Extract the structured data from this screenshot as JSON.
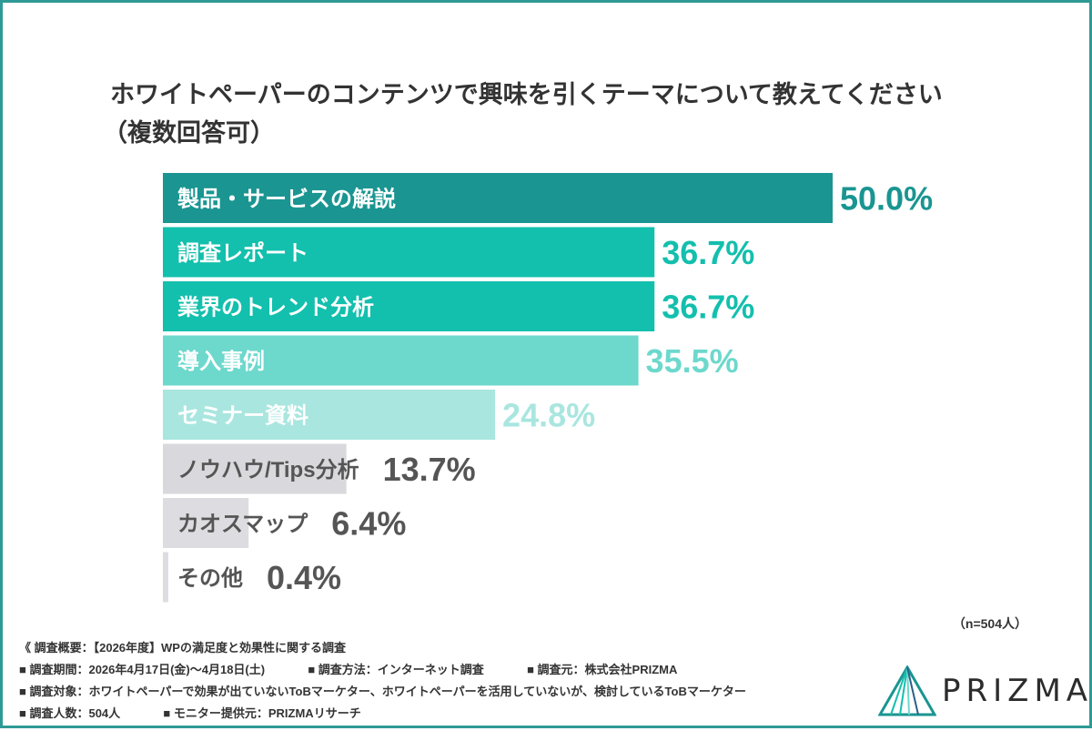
{
  "title_line1": "ホワイトペーパーのコンテンツで興味を引くテーマについて教えてください",
  "title_line2": "（複数回答可）",
  "chart_data": {
    "type": "bar",
    "orientation": "horizontal",
    "categories": [
      "製品・サービスの解説",
      "調査レポート",
      "業界のトレンド分析",
      "導入事例",
      "セミナー資料",
      "ノウハウ/Tips分析",
      "カオスマップ",
      "その他"
    ],
    "values": [
      50.0,
      36.7,
      36.7,
      35.5,
      24.8,
      13.7,
      6.4,
      0.4
    ],
    "value_labels": [
      "50.0%",
      "36.7%",
      "36.7%",
      "35.5%",
      "24.8%",
      "13.7%",
      "6.4%",
      "0.4%"
    ],
    "xlim": [
      0,
      50
    ],
    "bar_colors": [
      "#1a9591",
      "#13bfad",
      "#13bfad",
      "#6dd8cc",
      "#a9e6df",
      "#d9d9dd",
      "#dddde1",
      "#dddde1"
    ],
    "label_colors": [
      "#ffffff",
      "#ffffff",
      "#ffffff",
      "#ffffff",
      "#ffffff",
      "#555555",
      "#555555",
      "#555555"
    ],
    "value_colors": [
      "#1a9591",
      "#13bfad",
      "#13bfad",
      "#6dd8cc",
      "#a9e6df",
      "#555555",
      "#555555",
      "#555555"
    ]
  },
  "n_note": "（n=504人）",
  "survey": {
    "overview": "《 調査概要：【2026年度】WPの満足度と効果性に関する調査",
    "period": "■ 調査期間：2026年4月17日(金)〜4月18日(土)",
    "method": "■ 調査方法：インターネット調査",
    "source": "■ 調査元：株式会社PRIZMA",
    "target": "■ 調査対象：ホワイトペーパーで効果が出ていないToBマーケター、ホワイトペーパーを活用していないが、検討しているToBマーケター",
    "count": "■ 調査人数：504人",
    "monitor": "■ モニター提供元：PRIZMAリサーチ"
  },
  "logo_text": "PRIZMA",
  "logo_colors": [
    "#1a9591",
    "#13bfad",
    "#6dd8cc",
    "#2c5f8a"
  ]
}
